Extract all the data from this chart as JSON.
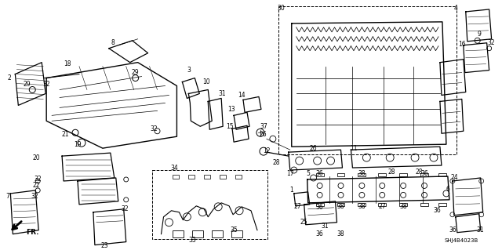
{
  "background_color": "#ffffff",
  "diagram_code": "SHJ4B4023B",
  "font_size": 5.5
}
